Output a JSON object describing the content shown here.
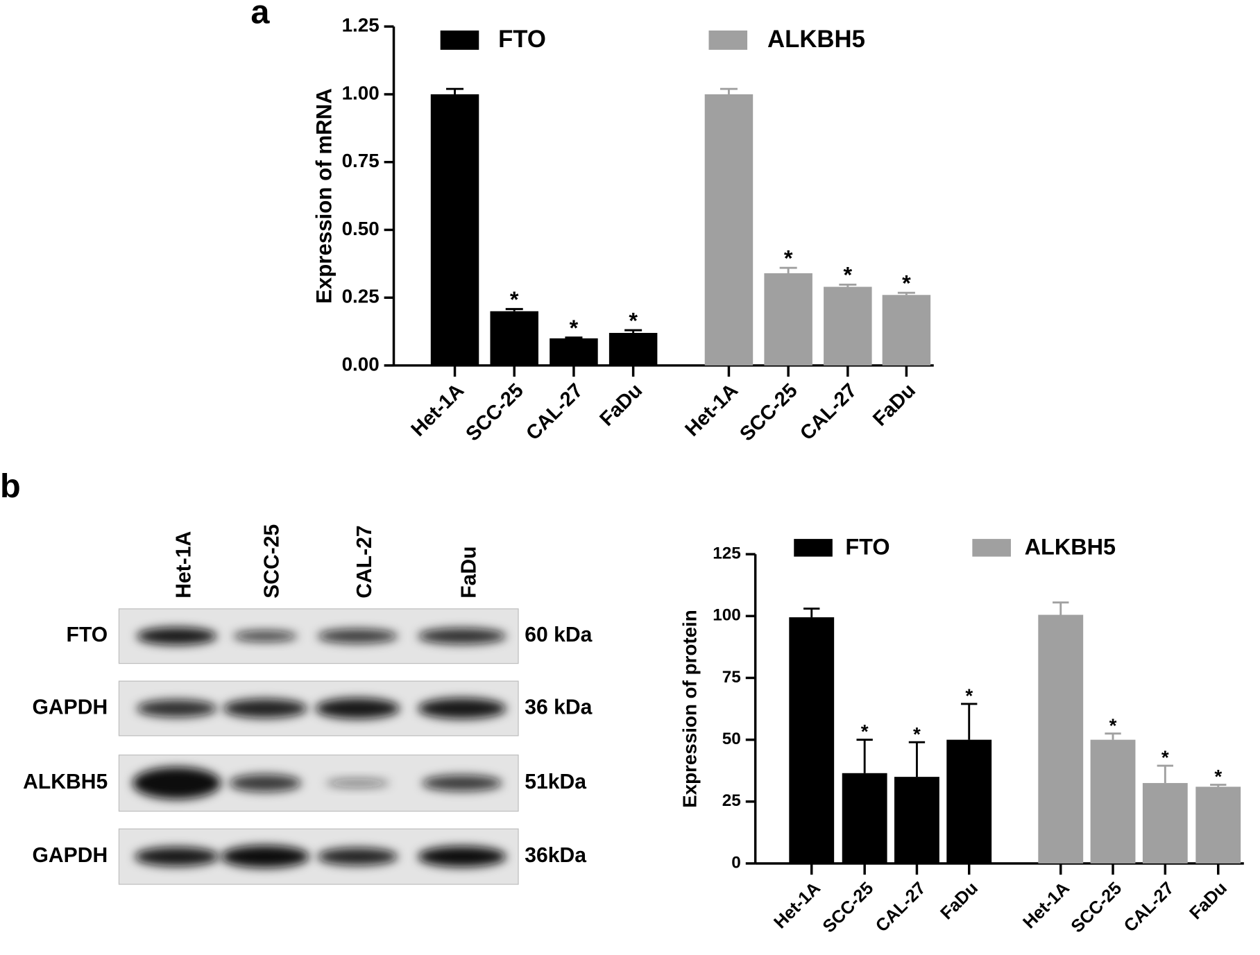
{
  "panel_labels": [
    "a",
    "b"
  ],
  "chart_data": [
    {
      "type": "bar",
      "ylabel": "Expression of mRNA",
      "categories": [
        "Het-1A",
        "SCC-25",
        "CAL-27",
        "FaDu"
      ],
      "series": [
        {
          "name": "FTO",
          "color": "#000000",
          "values": [
            1.0,
            0.2,
            0.1,
            0.12
          ],
          "errors": [
            0.02,
            0.008,
            0.003,
            0.01
          ],
          "significance": [
            null,
            "*",
            "*",
            "*"
          ]
        },
        {
          "name": "ALKBH5",
          "color": "#a0a0a0",
          "values": [
            1.0,
            0.34,
            0.29,
            0.26
          ],
          "errors": [
            0.02,
            0.02,
            0.008,
            0.008
          ],
          "significance": [
            null,
            "*",
            "*",
            "*"
          ]
        }
      ],
      "ylim": [
        0,
        1.25
      ],
      "yticks": [
        {
          "value": 0,
          "label": "0.00"
        },
        {
          "value": 0.25,
          "label": "0.25"
        },
        {
          "value": 0.5,
          "label": "0.50"
        },
        {
          "value": 0.75,
          "label": "0.75"
        },
        {
          "value": 1,
          "label": "1.00"
        },
        {
          "value": 1.25,
          "label": "1.25"
        }
      ]
    },
    {
      "type": "bar",
      "ylabel": "Expression of protein",
      "categories": [
        "Het-1A",
        "SCC-25",
        "CAL-27",
        "FaDu"
      ],
      "series": [
        {
          "name": "FTO",
          "color": "#000000",
          "values": [
            99.5,
            36.5,
            35,
            50
          ],
          "errors": [
            3.5,
            13.5,
            14,
            14.5
          ],
          "significance": [
            null,
            "*",
            "*",
            "*"
          ]
        },
        {
          "name": "ALKBH5",
          "color": "#a0a0a0",
          "values": [
            100.5,
            50,
            32.5,
            31
          ],
          "errors": [
            5,
            2.5,
            7,
            0.8
          ],
          "significance": [
            null,
            "*",
            "*",
            "*"
          ]
        }
      ],
      "ylim": [
        0,
        125
      ],
      "yticks": [
        0,
        25,
        50,
        75,
        100,
        125
      ]
    }
  ],
  "blot": {
    "lanes": [
      "Het-1A",
      "SCC-25",
      "CAL-27",
      "FaDu"
    ],
    "rows": [
      {
        "label": "FTO",
        "size": "60 kDa"
      },
      {
        "label": "GAPDH",
        "size": "36 kDa"
      },
      {
        "label": "ALKBH5",
        "size": "51kDa"
      },
      {
        "label": "GAPDH",
        "size": "36kDa"
      }
    ]
  }
}
